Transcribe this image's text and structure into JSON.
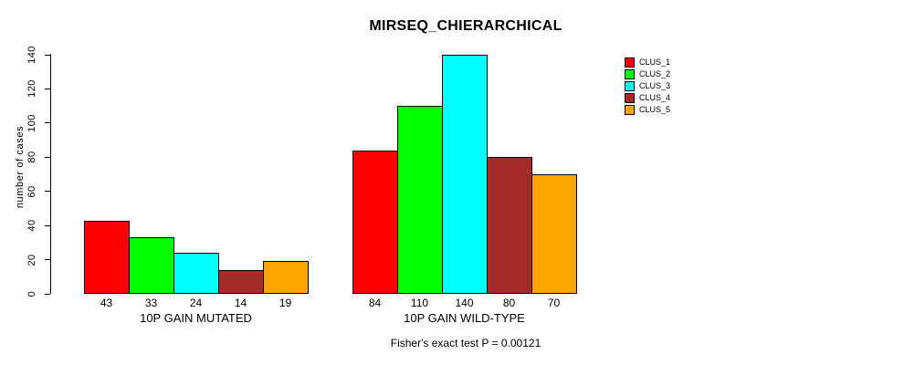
{
  "chart_data": {
    "type": "bar",
    "title": "MIRSEQ_CHIERARCHICAL",
    "ylabel": "number of cases",
    "xlabel": "",
    "footer": "Fisher's exact test P = 0.00121",
    "ylim": [
      0,
      140
    ],
    "yticks": [
      0,
      20,
      40,
      60,
      80,
      100,
      120,
      140
    ],
    "grid": false,
    "legend_position": "right",
    "categories": [
      "10P GAIN MUTATED",
      "10P GAIN WILD-TYPE"
    ],
    "series": [
      {
        "name": "CLUS_1",
        "color": "#FF0000",
        "values": [
          43,
          84
        ]
      },
      {
        "name": "CLUS_2",
        "color": "#00FF00",
        "values": [
          33,
          110
        ]
      },
      {
        "name": "CLUS_3",
        "color": "#00FFFF",
        "values": [
          24,
          140
        ]
      },
      {
        "name": "CLUS_4",
        "color": "#A52A2A",
        "values": [
          14,
          80
        ]
      },
      {
        "name": "CLUS_5",
        "color": "#FFA500",
        "values": [
          19,
          70
        ]
      }
    ],
    "bar_value_labels": {
      "10P GAIN MUTATED": [
        43,
        33,
        24,
        14,
        19
      ],
      "10P GAIN WILD-TYPE": [
        84,
        110,
        140,
        80,
        70
      ]
    }
  }
}
